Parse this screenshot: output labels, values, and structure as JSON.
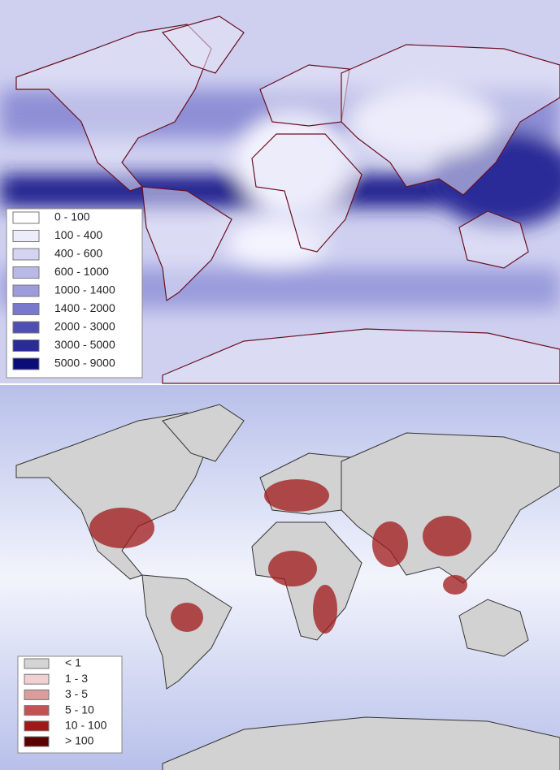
{
  "maps": [
    {
      "legend": [
        {
          "label": "0 - 100",
          "color": "#ffffff"
        },
        {
          "label": "100 - 400",
          "color": "#ececfb"
        },
        {
          "label": "400 - 600",
          "color": "#d4d4f2"
        },
        {
          "label": "600 - 1000",
          "color": "#b9b9e8"
        },
        {
          "label": "1000 - 1400",
          "color": "#9c9cdc"
        },
        {
          "label": "1400 - 2000",
          "color": "#7878cc"
        },
        {
          "label": "2000 - 3000",
          "color": "#4f4fb3"
        },
        {
          "label": "3000 - 5000",
          "color": "#2a2a98"
        },
        {
          "label": "5000 - 9000",
          "color": "#0c0c78"
        }
      ]
    },
    {
      "legend": [
        {
          "label": "< 1",
          "color": "#d4d4d4"
        },
        {
          "label": "1 - 3",
          "color": "#f0d0d0"
        },
        {
          "label": "3 - 5",
          "color": "#dc9c9c"
        },
        {
          "label": "5 - 10",
          "color": "#c05454"
        },
        {
          "label": "10 - 100",
          "color": "#a01818"
        },
        {
          "label": "> 100",
          "color": "#5a0000"
        }
      ]
    }
  ]
}
